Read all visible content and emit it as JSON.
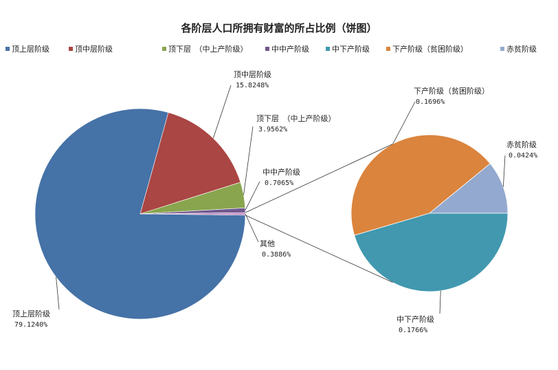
{
  "chart_data": {
    "type": "pie",
    "subtype": "pie-of-pie",
    "title": "各阶层人口所拥有财富的所占比例（饼图）",
    "legend_position": "top",
    "legend": [
      {
        "label": "顶上层阶级",
        "color": "#4572a7"
      },
      {
        "label": "顶中层阶级",
        "color": "#aa4643"
      },
      {
        "label": "顶下层　（中上产阶级）",
        "color": "#89a54e"
      },
      {
        "label": "中中产阶级",
        "color": "#71588f"
      },
      {
        "label": "中下产阶级",
        "color": "#4198af"
      },
      {
        "label": "下产阶级（贫困阶级）",
        "color": "#db843d"
      },
      {
        "label": "赤贫阶级",
        "color": "#93a9cf"
      }
    ],
    "main_pie": [
      {
        "name": "顶上层阶级",
        "value": 79.124,
        "label": "79.1240%",
        "color": "#4572a7"
      },
      {
        "name": "顶中层阶级",
        "value": 15.8248,
        "label": "15.8248%",
        "color": "#aa4643"
      },
      {
        "name": "顶下层　（中上产阶级）",
        "value": 3.9562,
        "label": "3.9562%",
        "color": "#89a54e"
      },
      {
        "name": "中中产阶级",
        "value": 0.7065,
        "label": "0.7065%",
        "color": "#71588f"
      },
      {
        "name": "其他",
        "value": 0.3886,
        "label": "0.3886%",
        "color": "#c492c4"
      }
    ],
    "secondary_pie": [
      {
        "name": "中下产阶级",
        "value": 0.1766,
        "label": "0.1766%",
        "color": "#4198af"
      },
      {
        "name": "下产阶级（贫困阶级）",
        "value": 0.1696,
        "label": "0.1696%",
        "color": "#db843d"
      },
      {
        "name": "赤贫阶级",
        "value": 0.0424,
        "label": "0.0424%",
        "color": "#93a9cf"
      }
    ]
  }
}
